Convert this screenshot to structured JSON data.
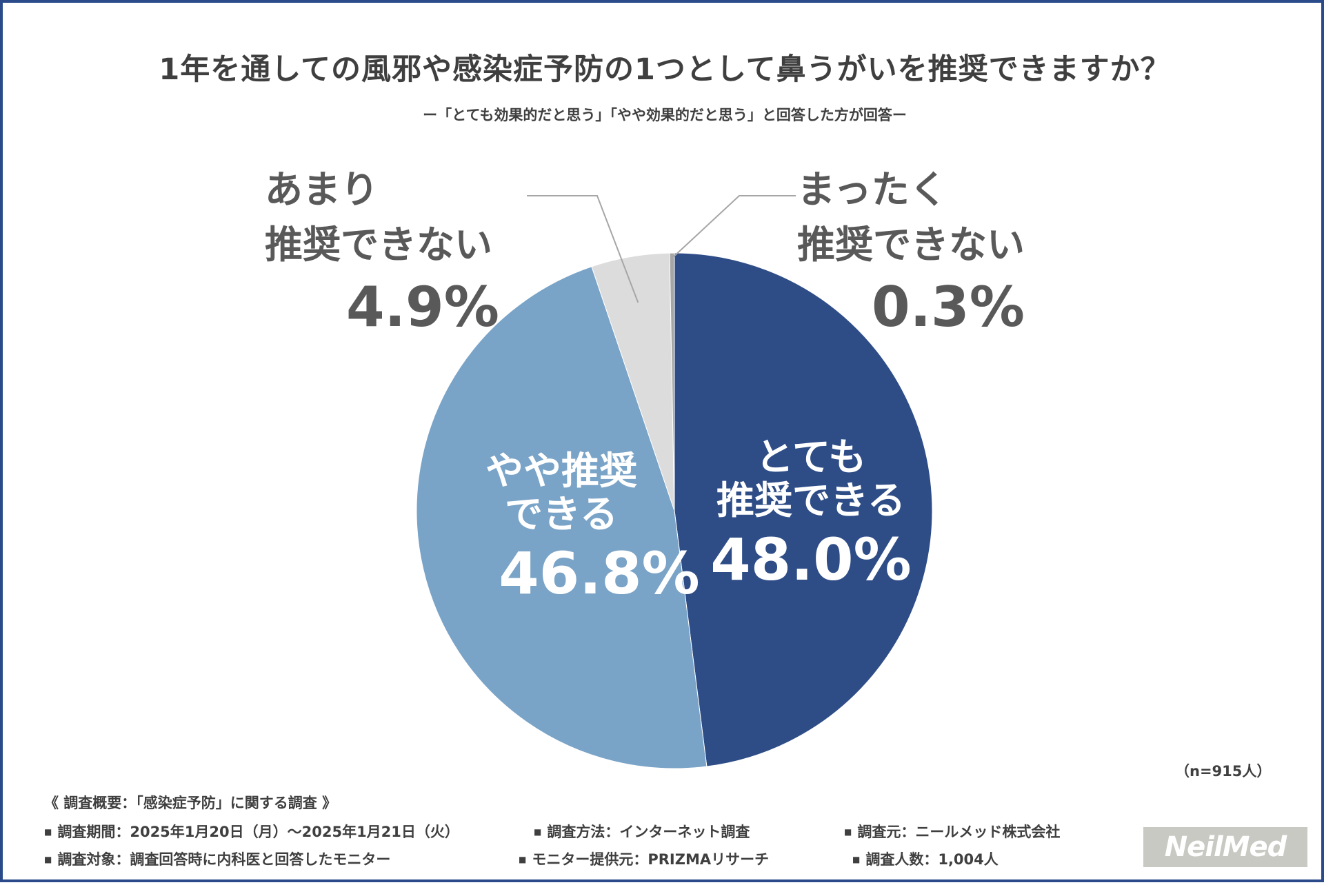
{
  "title": "1年を通しての風邪や感染症予防の1つとして鼻うがいを推奨できますか？",
  "subtitle": "ー「とても効果的だと思う」「やや効果的だと思う」と回答した方が回答ー",
  "chart_data": {
    "type": "pie",
    "title": "1年を通しての風邪や感染症予防の1つとして鼻うがいを推奨できますか？",
    "start": "12 o'clock, clockwise",
    "slices": [
      {
        "label": "とても推奨できる",
        "label_lines": [
          "とても",
          "推奨できる"
        ],
        "value": 48.0,
        "value_text": "48.0%",
        "color": "#2e4d87"
      },
      {
        "label": "やや推奨できる",
        "label_lines": [
          "やや推奨",
          "できる"
        ],
        "value": 46.8,
        "value_text": "46.8%",
        "color": "#79a3c7"
      },
      {
        "label": "あまり推奨できない",
        "label_lines": [
          "あまり",
          "推奨できない"
        ],
        "value": 4.9,
        "value_text": "4.9%",
        "color": "#dcdcdc"
      },
      {
        "label": "まったく推奨できない",
        "label_lines": [
          "まったく",
          "推奨できない"
        ],
        "value": 0.3,
        "value_text": "0.3%",
        "color": "#a6a6a6"
      }
    ]
  },
  "n_note": "（n=915人）",
  "survey": {
    "header": "《 調査概要：「感染症予防」に関する調査 》",
    "bullet": "■",
    "items": [
      "調査期間：2025年1月20日（月）～2025年1月21日（火）",
      "調査方法：インターネット調査",
      "調査元：ニールメッド株式会社",
      "調査対象：調査回答時に内科医と回答したモニター",
      "モニター提供元：PRIZMAリサーチ",
      "調査人数：1,004人"
    ]
  },
  "logo": "NeilMed",
  "colors": {
    "frame": "#2a4a8a",
    "text": "#3f3f3f",
    "leader": "#a6a6a6"
  }
}
